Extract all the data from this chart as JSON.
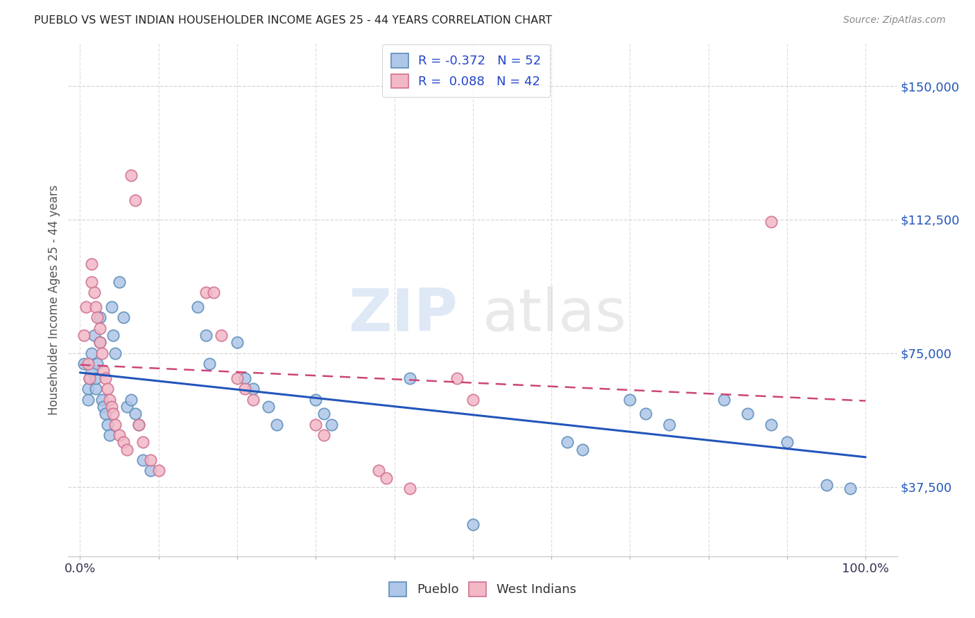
{
  "title": "PUEBLO VS WEST INDIAN HOUSEHOLDER INCOME AGES 25 - 44 YEARS CORRELATION CHART",
  "source": "Source: ZipAtlas.com",
  "ylabel": "Householder Income Ages 25 - 44 years",
  "ytick_labels": [
    "$37,500",
    "$75,000",
    "$112,500",
    "$150,000"
  ],
  "ytick_values": [
    37500,
    75000,
    112500,
    150000
  ],
  "ymin": 18000,
  "ymax": 162000,
  "xmin": -0.015,
  "xmax": 1.04,
  "pueblo_color": "#aec6e8",
  "pueblo_edge": "#5b8db8",
  "west_indian_color": "#f2b8c6",
  "west_indian_edge": "#d07090",
  "trend_pueblo_color": "#2255bb",
  "trend_west_indian_color": "#cc4477",
  "watermark_zip": "ZIP",
  "watermark_atlas": "atlas",
  "pueblo_R": -0.372,
  "pueblo_N": 52,
  "west_indian_R": 0.088,
  "west_indian_N": 42,
  "pueblo_scatter_x": [
    0.005,
    0.01,
    0.01,
    0.012,
    0.015,
    0.015,
    0.018,
    0.02,
    0.02,
    0.022,
    0.025,
    0.025,
    0.028,
    0.03,
    0.032,
    0.035,
    0.038,
    0.04,
    0.042,
    0.045,
    0.05,
    0.055,
    0.06,
    0.065,
    0.07,
    0.075,
    0.08,
    0.09,
    0.15,
    0.16,
    0.165,
    0.2,
    0.21,
    0.22,
    0.24,
    0.25,
    0.3,
    0.31,
    0.32,
    0.42,
    0.5,
    0.62,
    0.64,
    0.7,
    0.72,
    0.75,
    0.82,
    0.85,
    0.88,
    0.9,
    0.95,
    0.98
  ],
  "pueblo_scatter_y": [
    72000,
    65000,
    62000,
    68000,
    70000,
    75000,
    80000,
    65000,
    68000,
    72000,
    85000,
    78000,
    62000,
    60000,
    58000,
    55000,
    52000,
    88000,
    80000,
    75000,
    95000,
    85000,
    60000,
    62000,
    58000,
    55000,
    45000,
    42000,
    88000,
    80000,
    72000,
    78000,
    68000,
    65000,
    60000,
    55000,
    62000,
    58000,
    55000,
    68000,
    27000,
    50000,
    48000,
    62000,
    58000,
    55000,
    62000,
    58000,
    55000,
    50000,
    38000,
    37000
  ],
  "west_indian_scatter_x": [
    0.005,
    0.008,
    0.01,
    0.012,
    0.015,
    0.015,
    0.018,
    0.02,
    0.022,
    0.025,
    0.025,
    0.028,
    0.03,
    0.032,
    0.035,
    0.038,
    0.04,
    0.042,
    0.045,
    0.05,
    0.055,
    0.06,
    0.065,
    0.07,
    0.075,
    0.08,
    0.09,
    0.1,
    0.16,
    0.17,
    0.18,
    0.2,
    0.21,
    0.22,
    0.3,
    0.31,
    0.38,
    0.39,
    0.42,
    0.48,
    0.5,
    0.88
  ],
  "west_indian_scatter_y": [
    80000,
    88000,
    72000,
    68000,
    100000,
    95000,
    92000,
    88000,
    85000,
    82000,
    78000,
    75000,
    70000,
    68000,
    65000,
    62000,
    60000,
    58000,
    55000,
    52000,
    50000,
    48000,
    125000,
    118000,
    55000,
    50000,
    45000,
    42000,
    92000,
    92000,
    80000,
    68000,
    65000,
    62000,
    55000,
    52000,
    42000,
    40000,
    37000,
    68000,
    62000,
    112000
  ]
}
